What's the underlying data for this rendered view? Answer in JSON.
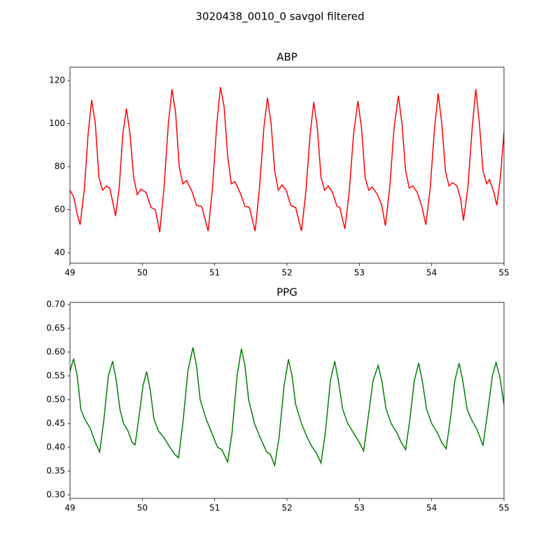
{
  "figure_title": "3020438_0010_0 savgol filtered",
  "chart_data": [
    {
      "type": "line",
      "title": "ABP",
      "color": "#ff0000",
      "x": [
        49.0,
        49.05,
        49.1,
        49.14,
        49.2,
        49.25,
        49.3,
        49.35,
        49.4,
        49.45,
        49.5,
        49.55,
        49.6,
        49.63,
        49.68,
        49.73,
        49.78,
        49.83,
        49.88,
        49.93,
        49.98,
        50.05,
        50.12,
        50.18,
        50.24,
        50.3,
        50.36,
        50.41,
        50.46,
        50.51,
        50.56,
        50.61,
        50.68,
        50.75,
        50.82,
        50.91,
        50.97,
        51.03,
        51.08,
        51.13,
        51.18,
        51.23,
        51.28,
        51.35,
        51.42,
        51.48,
        51.56,
        51.62,
        51.68,
        51.73,
        51.78,
        51.83,
        51.88,
        51.93,
        51.99,
        52.05,
        52.12,
        52.2,
        52.26,
        52.32,
        52.37,
        52.42,
        52.47,
        52.52,
        52.57,
        52.63,
        52.69,
        52.73,
        52.8,
        52.86,
        52.92,
        52.98,
        53.03,
        53.08,
        53.13,
        53.18,
        53.25,
        53.31,
        53.36,
        53.42,
        53.48,
        53.54,
        53.59,
        53.64,
        53.69,
        53.74,
        53.8,
        53.86,
        53.92,
        53.98,
        54.04,
        54.09,
        54.14,
        54.19,
        54.24,
        54.29,
        54.35,
        54.4,
        54.44,
        54.5,
        54.56,
        54.61,
        54.66,
        54.71,
        54.76,
        54.8,
        54.86,
        54.9,
        54.95,
        55.0
      ],
      "values": [
        69,
        66,
        58,
        53,
        70,
        95,
        111,
        100,
        75,
        69,
        71,
        70,
        62,
        57,
        70,
        95,
        107,
        95,
        75,
        67,
        69.5,
        68,
        61,
        60,
        49.5,
        70,
        100,
        116,
        105,
        80,
        72,
        73.5,
        69,
        62,
        61.5,
        50,
        70,
        100,
        117,
        108,
        85,
        72,
        73,
        68,
        61.5,
        61,
        50,
        70,
        98,
        112,
        100,
        78,
        69,
        71.5,
        69,
        62,
        61,
        50,
        68,
        95,
        110,
        98,
        75,
        69,
        71,
        68,
        61.5,
        61,
        51,
        68,
        95,
        110.5,
        98,
        75,
        69,
        70.5,
        67,
        62,
        52.5,
        70,
        98,
        113,
        100,
        78,
        70,
        71,
        68,
        62,
        53,
        70,
        98,
        114,
        100,
        78,
        71,
        72.5,
        71,
        65,
        55,
        70,
        98,
        116,
        100,
        78,
        72,
        74,
        68,
        62,
        75,
        96
      ],
      "xlim": [
        49,
        55
      ],
      "xticks": [
        49,
        50,
        51,
        52,
        53,
        54,
        55
      ],
      "ylim": [
        35.1,
        126.2
      ],
      "yticks": [
        40,
        60,
        80,
        100,
        120
      ]
    },
    {
      "type": "line",
      "title": "PPG",
      "color": "#008000",
      "x": [
        49.0,
        49.05,
        49.1,
        49.15,
        49.2,
        49.28,
        49.35,
        49.41,
        49.47,
        49.53,
        49.59,
        49.64,
        49.69,
        49.74,
        49.8,
        49.86,
        49.9,
        49.95,
        50.01,
        50.06,
        50.11,
        50.16,
        50.22,
        50.3,
        50.38,
        50.45,
        50.5,
        50.56,
        50.63,
        50.7,
        50.75,
        50.8,
        50.88,
        50.96,
        51.04,
        51.1,
        51.18,
        51.24,
        51.31,
        51.37,
        51.42,
        51.47,
        51.55,
        51.63,
        51.72,
        51.77,
        51.83,
        51.89,
        51.96,
        52.02,
        52.07,
        52.12,
        52.2,
        52.28,
        52.35,
        52.4,
        52.47,
        52.53,
        52.6,
        52.66,
        52.71,
        52.77,
        52.84,
        52.92,
        53.0,
        53.06,
        53.12,
        53.19,
        53.26,
        53.31,
        53.37,
        53.44,
        53.52,
        53.58,
        53.64,
        53.7,
        53.76,
        53.82,
        53.87,
        53.93,
        54.0,
        54.08,
        54.14,
        54.2,
        54.26,
        54.32,
        54.38,
        54.43,
        54.49,
        54.56,
        54.62,
        54.67,
        54.71,
        54.77,
        54.84,
        54.89,
        54.94,
        55.0
      ],
      "values": [
        0.56,
        0.586,
        0.55,
        0.48,
        0.46,
        0.44,
        0.41,
        0.39,
        0.46,
        0.55,
        0.581,
        0.54,
        0.48,
        0.45,
        0.435,
        0.41,
        0.405,
        0.46,
        0.53,
        0.559,
        0.52,
        0.46,
        0.435,
        0.42,
        0.4,
        0.385,
        0.378,
        0.45,
        0.56,
        0.61,
        0.57,
        0.5,
        0.46,
        0.43,
        0.4,
        0.395,
        0.369,
        0.43,
        0.55,
        0.607,
        0.57,
        0.5,
        0.45,
        0.42,
        0.39,
        0.385,
        0.362,
        0.42,
        0.53,
        0.585,
        0.55,
        0.49,
        0.45,
        0.42,
        0.4,
        0.39,
        0.367,
        0.43,
        0.54,
        0.581,
        0.54,
        0.48,
        0.45,
        0.43,
        0.41,
        0.392,
        0.46,
        0.54,
        0.572,
        0.54,
        0.48,
        0.45,
        0.43,
        0.41,
        0.395,
        0.46,
        0.54,
        0.577,
        0.54,
        0.48,
        0.45,
        0.43,
        0.41,
        0.397,
        0.46,
        0.54,
        0.577,
        0.54,
        0.48,
        0.455,
        0.44,
        0.42,
        0.403,
        0.47,
        0.55,
        0.578,
        0.55,
        0.49
      ],
      "xlim": [
        49,
        55
      ],
      "xticks": [
        49,
        50,
        51,
        52,
        53,
        54,
        55
      ],
      "ylim": [
        0.2926,
        0.7044
      ],
      "yticks": [
        {
          "value": 0.3,
          "label": "0.30"
        },
        0.35,
        {
          "value": 0.4,
          "label": "0.40"
        },
        0.45,
        {
          "value": 0.5,
          "label": "0.50"
        },
        0.55,
        {
          "value": 0.6,
          "label": "0.60"
        },
        0.65,
        {
          "value": 0.7,
          "label": "0.70"
        }
      ]
    }
  ]
}
